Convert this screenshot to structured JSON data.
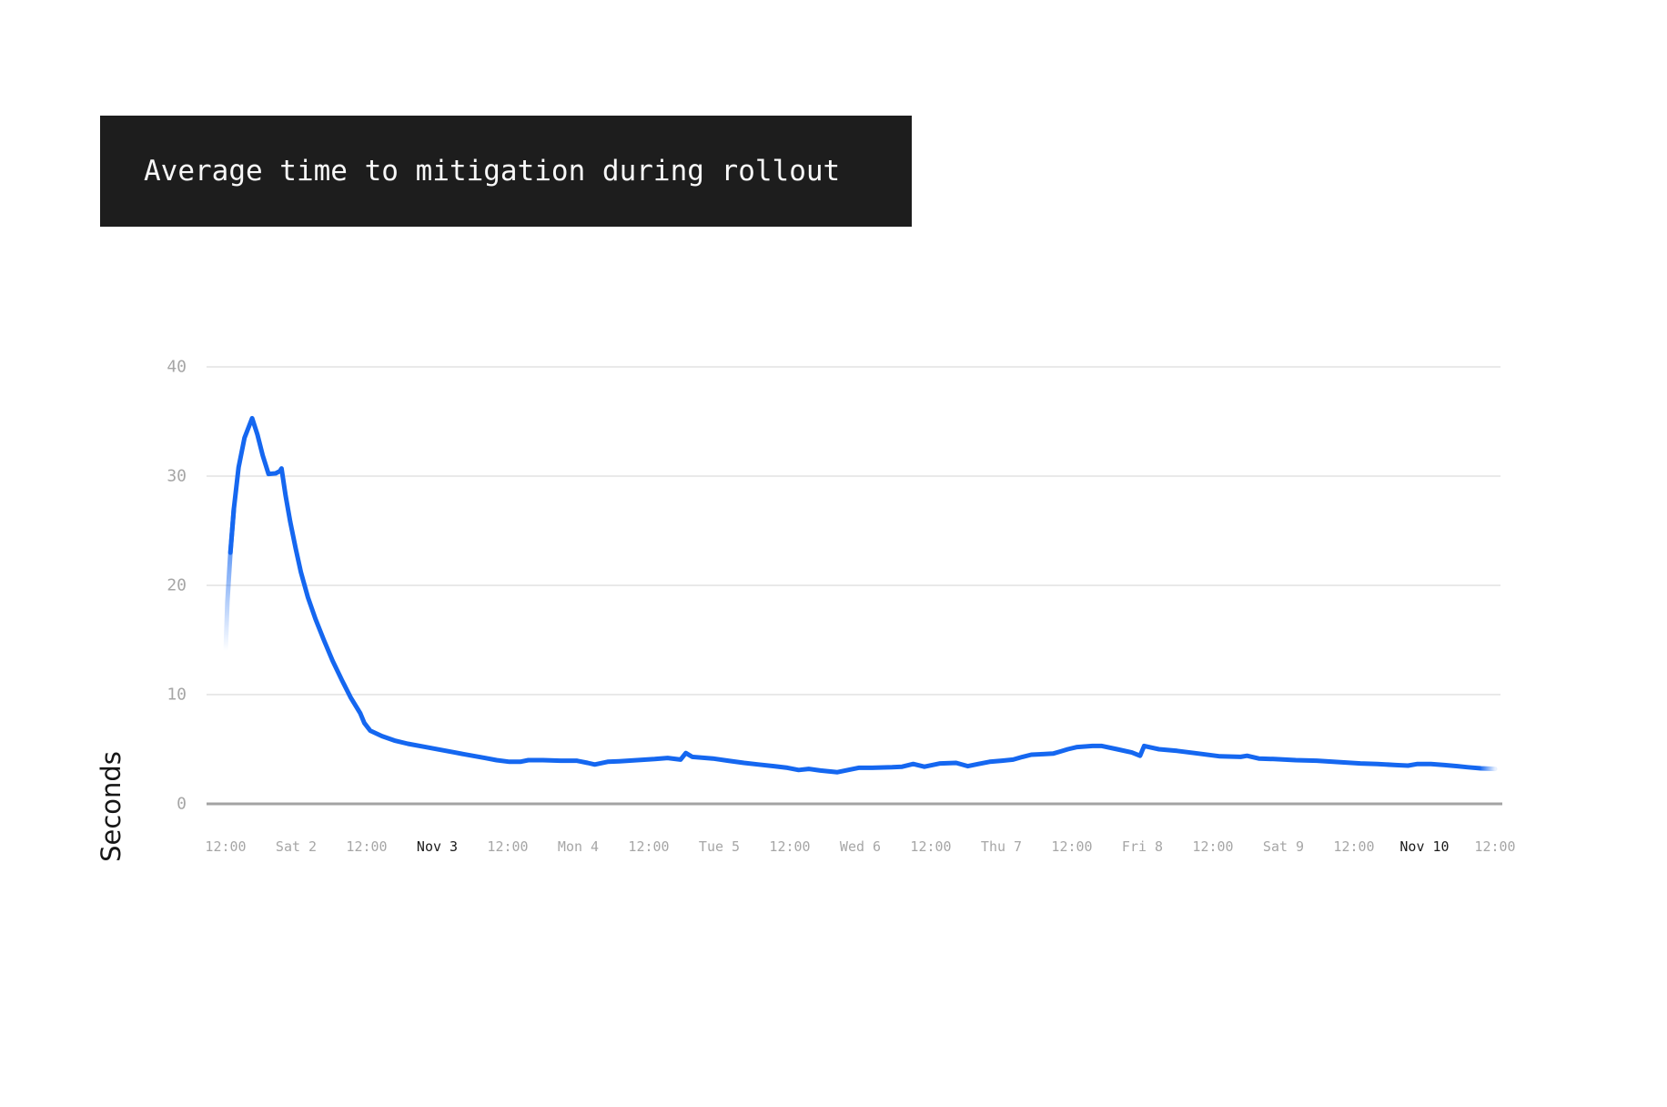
{
  "chart_data": {
    "type": "line",
    "title": "Average time to mitigation during rollout",
    "ylabel": "Seconds",
    "xlabel": "",
    "ylim": [
      0,
      40
    ],
    "y_ticks": [
      0,
      10,
      20,
      30,
      40
    ],
    "grid": true,
    "legend": "none",
    "x_tick_interval_hours": 12,
    "x_ticks": [
      {
        "label": "12:00",
        "emphasis": false
      },
      {
        "label": "Sat 2",
        "emphasis": false
      },
      {
        "label": "12:00",
        "emphasis": false
      },
      {
        "label": "Nov 3",
        "emphasis": true
      },
      {
        "label": "12:00",
        "emphasis": false
      },
      {
        "label": "Mon 4",
        "emphasis": false
      },
      {
        "label": "12:00",
        "emphasis": false
      },
      {
        "label": "Tue 5",
        "emphasis": false
      },
      {
        "label": "12:00",
        "emphasis": false
      },
      {
        "label": "Wed 6",
        "emphasis": false
      },
      {
        "label": "12:00",
        "emphasis": false
      },
      {
        "label": "Thu 7",
        "emphasis": false
      },
      {
        "label": "12:00",
        "emphasis": false
      },
      {
        "label": "Fri 8",
        "emphasis": false
      },
      {
        "label": "12:00",
        "emphasis": false
      },
      {
        "label": "Sat 9",
        "emphasis": false
      },
      {
        "label": "12:00",
        "emphasis": false
      },
      {
        "label": "Nov 10",
        "emphasis": true
      },
      {
        "label": "12:00",
        "emphasis": false
      }
    ],
    "series": [
      {
        "name": "average-time-to-mitigation-seconds",
        "points_hours_vs_seconds": [
          [
            0,
            14.0
          ],
          [
            0.3,
            18.5
          ],
          [
            0.8,
            23.0
          ],
          [
            1.4,
            27.0
          ],
          [
            2.2,
            30.8
          ],
          [
            3.2,
            33.5
          ],
          [
            4.5,
            35.3
          ],
          [
            5.4,
            33.8
          ],
          [
            6.3,
            31.9
          ],
          [
            7.3,
            30.2
          ],
          [
            8.5,
            30.25
          ],
          [
            9.2,
            30.45
          ],
          [
            9.5,
            30.7
          ],
          [
            10.2,
            28.2
          ],
          [
            11,
            25.8
          ],
          [
            11.9,
            23.4
          ],
          [
            12.8,
            21.2
          ],
          [
            14,
            18.9
          ],
          [
            15.3,
            16.9
          ],
          [
            16.7,
            15.0
          ],
          [
            18.2,
            13.1
          ],
          [
            19.8,
            11.3
          ],
          [
            21.3,
            9.7
          ],
          [
            22.9,
            8.3
          ],
          [
            23.6,
            7.4
          ],
          [
            24.6,
            6.7
          ],
          [
            26.6,
            6.2
          ],
          [
            28.7,
            5.8
          ],
          [
            31,
            5.5
          ],
          [
            34,
            5.2
          ],
          [
            36.5,
            4.95
          ],
          [
            39,
            4.7
          ],
          [
            41.5,
            4.45
          ],
          [
            44.1,
            4.2
          ],
          [
            46.1,
            4.0
          ],
          [
            48.3,
            3.85
          ],
          [
            50.1,
            3.85
          ],
          [
            51.5,
            4.0
          ],
          [
            54,
            4.0
          ],
          [
            57,
            3.95
          ],
          [
            59.7,
            3.95
          ],
          [
            61.6,
            3.75
          ],
          [
            62.8,
            3.6
          ],
          [
            65,
            3.85
          ],
          [
            67,
            3.9
          ],
          [
            70,
            4.0
          ],
          [
            73,
            4.1
          ],
          [
            75.2,
            4.2
          ],
          [
            77.4,
            4.05
          ],
          [
            78.3,
            4.65
          ],
          [
            79.4,
            4.3
          ],
          [
            82.9,
            4.15
          ],
          [
            85.5,
            3.95
          ],
          [
            88.2,
            3.75
          ],
          [
            90.7,
            3.6
          ],
          [
            93.3,
            3.45
          ],
          [
            95.6,
            3.3
          ],
          [
            97.5,
            3.1
          ],
          [
            99.2,
            3.2
          ],
          [
            101.2,
            3.05
          ],
          [
            104.1,
            2.9
          ],
          [
            105.9,
            3.1
          ],
          [
            107.7,
            3.3
          ],
          [
            110,
            3.3
          ],
          [
            113.4,
            3.35
          ],
          [
            115.1,
            3.4
          ],
          [
            117,
            3.65
          ],
          [
            118.9,
            3.4
          ],
          [
            121.6,
            3.7
          ],
          [
            124.3,
            3.75
          ],
          [
            126.3,
            3.45
          ],
          [
            128.1,
            3.65
          ],
          [
            130,
            3.85
          ],
          [
            132.1,
            3.95
          ],
          [
            134,
            4.05
          ],
          [
            135.6,
            4.3
          ],
          [
            137.1,
            4.5
          ],
          [
            139.1,
            4.55
          ],
          [
            140.8,
            4.6
          ],
          [
            142.1,
            4.8
          ],
          [
            143.3,
            5.0
          ],
          [
            144.9,
            5.2
          ],
          [
            147.5,
            5.3
          ],
          [
            149.1,
            5.3
          ],
          [
            151.7,
            5.0
          ],
          [
            154.2,
            4.7
          ],
          [
            155.6,
            4.4
          ],
          [
            156.3,
            5.3
          ],
          [
            158.8,
            5.0
          ],
          [
            161.9,
            4.85
          ],
          [
            165.6,
            4.6
          ],
          [
            169.2,
            4.35
          ],
          [
            172.7,
            4.3
          ],
          [
            173.8,
            4.4
          ],
          [
            175.8,
            4.15
          ],
          [
            178.4,
            4.1
          ],
          [
            182.1,
            4.0
          ],
          [
            185.7,
            3.95
          ],
          [
            190,
            3.8
          ],
          [
            193.1,
            3.7
          ],
          [
            196,
            3.65
          ],
          [
            199.1,
            3.55
          ],
          [
            201.2,
            3.5
          ],
          [
            202.8,
            3.65
          ],
          [
            205.1,
            3.65
          ],
          [
            207.4,
            3.55
          ],
          [
            209.6,
            3.45
          ],
          [
            211.4,
            3.35
          ],
          [
            213.6,
            3.25
          ],
          [
            216,
            3.2
          ]
        ]
      }
    ],
    "colors": {
      "line": "#1567f0",
      "grid": "#e9e9e9",
      "axis": "#a3a3a3",
      "tick_label": "#a6a6a6",
      "tick_label_emphasis": "#1b1b1b",
      "title_bg": "#1d1d1d",
      "title_fg": "#f8f8f8",
      "ylabel_color": "#161616"
    }
  }
}
